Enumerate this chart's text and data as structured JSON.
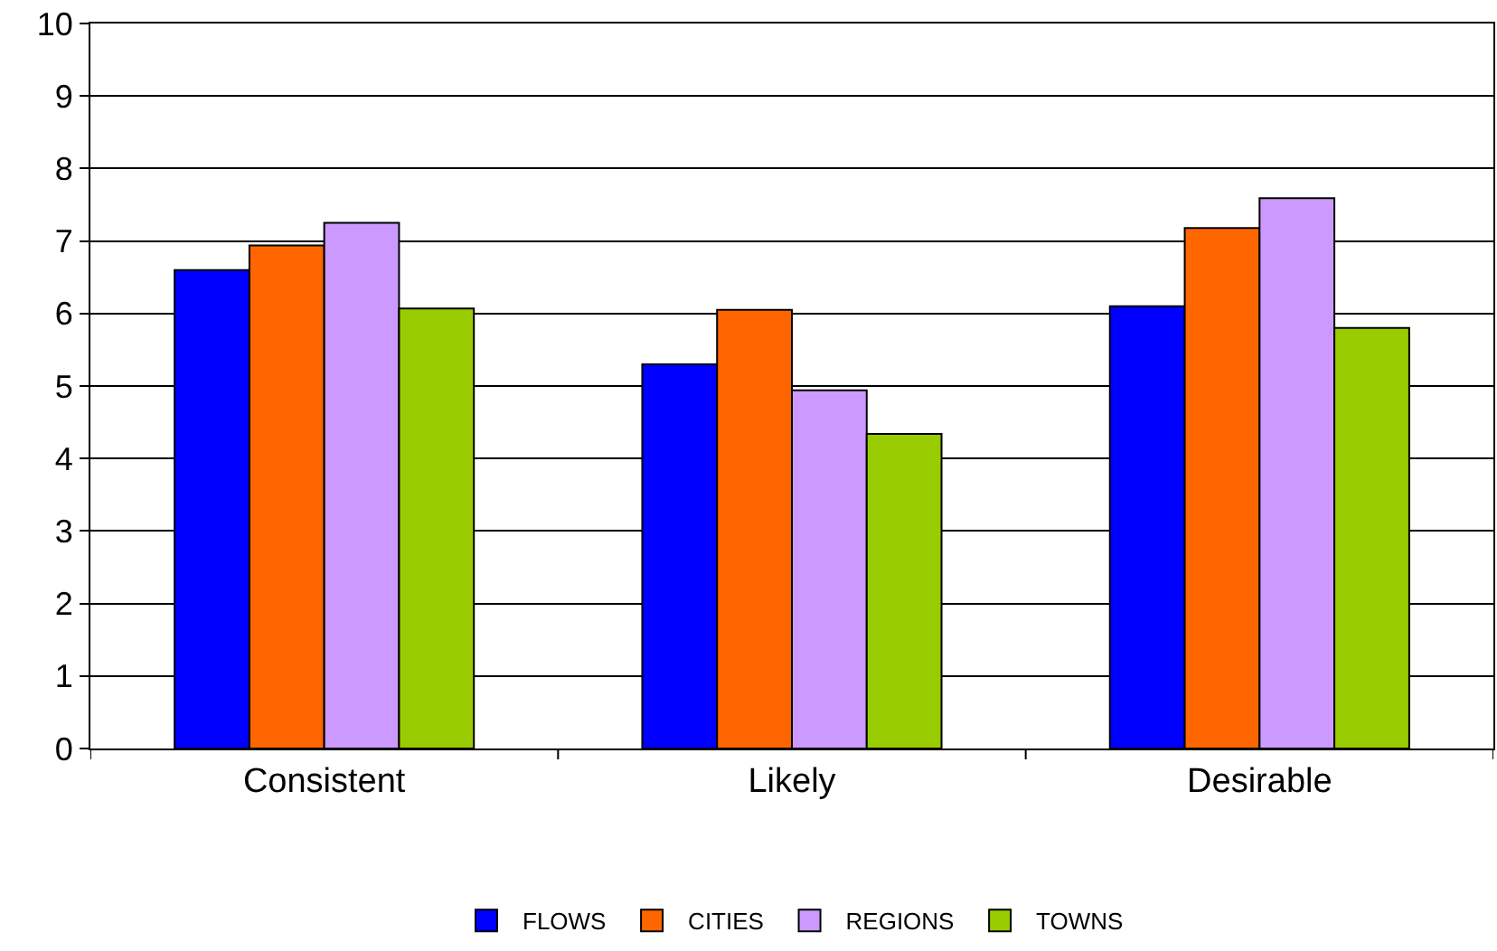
{
  "chart_data": {
    "type": "bar",
    "categories": [
      "Consistent",
      "Likely",
      "Desirable"
    ],
    "series": [
      {
        "name": "FLOWS",
        "color": "#0000ff",
        "values": [
          6.6,
          5.3,
          6.1
        ]
      },
      {
        "name": "CITIES",
        "color": "#ff6600",
        "values": [
          6.94,
          6.05,
          7.18
        ]
      },
      {
        "name": "REGIONS",
        "color": "#cc99ff",
        "values": [
          7.25,
          4.94,
          7.59
        ]
      },
      {
        "name": "TOWNS",
        "color": "#99cc00",
        "values": [
          6.07,
          4.34,
          5.8
        ]
      }
    ],
    "ylim": [
      0,
      10
    ],
    "yticks": [
      0,
      1,
      2,
      3,
      4,
      5,
      6,
      7,
      8,
      9,
      10
    ],
    "grid": "y",
    "legend": "bottom"
  }
}
